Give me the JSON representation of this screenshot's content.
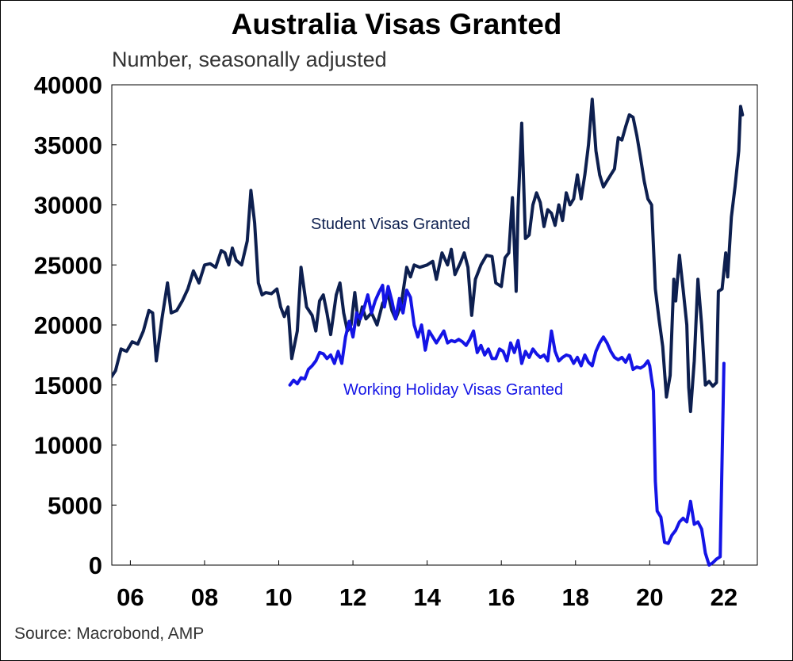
{
  "chart_data": {
    "type": "line",
    "title": "Australia Visas Granted",
    "subtitle": "Number, seasonally adjusted",
    "source": "Source: Macrobond, AMP",
    "ylim": [
      0,
      40000
    ],
    "yticks": [
      0,
      5000,
      10000,
      15000,
      20000,
      25000,
      30000,
      35000,
      40000
    ],
    "xlim": [
      2005.5,
      2022.9
    ],
    "xticks": [
      {
        "value": 2006,
        "label": "06"
      },
      {
        "value": 2008,
        "label": "08"
      },
      {
        "value": 2010,
        "label": "10"
      },
      {
        "value": 2012,
        "label": "12"
      },
      {
        "value": 2014,
        "label": "14"
      },
      {
        "value": 2016,
        "label": "16"
      },
      {
        "value": 2018,
        "label": "18"
      },
      {
        "value": 2020,
        "label": "20"
      },
      {
        "value": 2022,
        "label": "22"
      }
    ],
    "grid": false,
    "series": [
      {
        "name": "Student Visas Granted",
        "color": "#0d1f4f",
        "points": [
          [
            2005.6,
            16800
          ],
          [
            2005.75,
            15400
          ],
          [
            2005.9,
            16300
          ],
          [
            2006.0,
            15100
          ],
          [
            2006.15,
            16500
          ],
          [
            2006.3,
            16400
          ],
          [
            2006.45,
            15500
          ],
          [
            2006.6,
            16200
          ],
          [
            2006.75,
            18000
          ],
          [
            2006.9,
            17800
          ],
          [
            2007.05,
            18600
          ],
          [
            2007.2,
            18400
          ],
          [
            2007.35,
            19500
          ],
          [
            2007.5,
            21200
          ],
          [
            2007.6,
            21000
          ],
          [
            2007.7,
            17000
          ],
          [
            2007.85,
            20500
          ],
          [
            2008.0,
            23500
          ],
          [
            2008.1,
            21000
          ],
          [
            2008.25,
            21200
          ],
          [
            2008.4,
            22000
          ],
          [
            2008.55,
            23000
          ],
          [
            2008.7,
            24500
          ],
          [
            2008.85,
            23500
          ],
          [
            2009.0,
            25000
          ],
          [
            2009.15,
            25100
          ],
          [
            2009.3,
            24800
          ],
          [
            2009.45,
            26200
          ],
          [
            2009.55,
            26000
          ],
          [
            2009.65,
            25000
          ],
          [
            2009.75,
            26400
          ],
          [
            2009.85,
            25400
          ],
          [
            2010.0,
            25000
          ],
          [
            2010.15,
            27000
          ],
          [
            2010.25,
            31200
          ],
          [
            2010.35,
            28500
          ],
          [
            2010.45,
            23500
          ],
          [
            2010.55,
            22500
          ],
          [
            2010.65,
            22700
          ],
          [
            2010.8,
            22600
          ],
          [
            2010.95,
            23000
          ],
          [
            2011.05,
            21500
          ],
          [
            2011.15,
            20700
          ],
          [
            2011.25,
            21500
          ],
          [
            2011.35,
            17200
          ],
          [
            2011.5,
            19500
          ],
          [
            2011.6,
            24800
          ],
          [
            2011.75,
            21500
          ],
          [
            2011.9,
            20800
          ],
          [
            2012.0,
            19500
          ],
          [
            2012.1,
            22000
          ],
          [
            2012.2,
            22500
          ],
          [
            2012.3,
            21000
          ],
          [
            2012.4,
            19200
          ],
          [
            2012.55,
            22500
          ],
          [
            2012.65,
            23500
          ],
          [
            2012.75,
            21000
          ],
          [
            2012.85,
            19500
          ],
          [
            2012.95,
            20000
          ],
          [
            2013.05,
            22700
          ],
          [
            2013.15,
            20000
          ],
          [
            2013.25,
            21500
          ],
          [
            2013.35,
            20500
          ],
          [
            2013.5,
            21000
          ],
          [
            2013.65,
            20000
          ],
          [
            2013.8,
            21800
          ],
          [
            2013.95,
            22500
          ],
          [
            2014.05,
            21200
          ],
          [
            2014.15,
            20500
          ],
          [
            2014.3,
            21700
          ],
          [
            2014.45,
            24800
          ],
          [
            2014.55,
            24000
          ],
          [
            2014.65,
            25000
          ],
          [
            2014.8,
            24800
          ],
          [
            2015.0,
            25000
          ],
          [
            2015.15,
            25300
          ],
          [
            2015.25,
            23800
          ],
          [
            2015.4,
            26000
          ],
          [
            2015.55,
            25000
          ],
          [
            2015.65,
            26300
          ],
          [
            2015.75,
            24200
          ],
          [
            2015.9,
            25200
          ],
          [
            2016.0,
            26000
          ],
          [
            2016.1,
            24800
          ],
          [
            2016.2,
            20800
          ],
          [
            2016.3,
            23800
          ],
          [
            2016.45,
            25000
          ],
          [
            2016.6,
            25800
          ],
          [
            2016.75,
            25700
          ],
          [
            2016.85,
            23500
          ],
          [
            2017.0,
            23200
          ],
          [
            2017.1,
            25600
          ],
          [
            2017.2,
            26000
          ],
          [
            2017.3,
            30600
          ],
          [
            2017.4,
            22800
          ],
          [
            2017.45,
            29800
          ],
          [
            2017.55,
            36800
          ],
          [
            2017.65,
            27200
          ],
          [
            2017.75,
            27500
          ],
          [
            2017.85,
            30000
          ],
          [
            2017.95,
            31000
          ],
          [
            2018.05,
            30200
          ],
          [
            2018.15,
            28200
          ],
          [
            2018.25,
            29600
          ],
          [
            2018.35,
            29300
          ],
          [
            2018.45,
            28300
          ],
          [
            2018.55,
            30000
          ],
          [
            2018.65,
            28700
          ],
          [
            2018.75,
            31000
          ],
          [
            2018.85,
            30000
          ],
          [
            2018.95,
            30500
          ],
          [
            2019.05,
            32500
          ],
          [
            2019.15,
            30500
          ],
          [
            2019.25,
            32500
          ],
          [
            2019.35,
            35000
          ],
          [
            2019.45,
            38800
          ],
          [
            2019.55,
            34500
          ],
          [
            2019.65,
            32500
          ],
          [
            2019.75,
            31500
          ],
          [
            2019.85,
            32000
          ],
          [
            2019.95,
            32500
          ],
          [
            2020.05,
            33000
          ],
          [
            2020.15,
            35600
          ],
          [
            2020.25,
            35400
          ],
          [
            2020.35,
            36500
          ],
          [
            2020.45,
            37500
          ],
          [
            2020.55,
            37300
          ],
          [
            2020.65,
            35800
          ],
          [
            2020.75,
            34000
          ],
          [
            2020.85,
            32000
          ],
          [
            2020.95,
            30500
          ],
          [
            2021.05,
            30000
          ],
          [
            2021.15,
            23000
          ],
          [
            2021.25,
            20500
          ],
          [
            2021.35,
            18200
          ],
          [
            2021.45,
            14000
          ],
          [
            2021.55,
            15800
          ],
          [
            2021.65,
            23800
          ],
          [
            2021.7,
            22000
          ],
          [
            2021.8,
            25800
          ],
          [
            2021.9,
            23000
          ],
          [
            2022.0,
            20000
          ],
          [
            2022.05,
            14800
          ],
          [
            2022.1,
            12800
          ],
          [
            2022.2,
            17000
          ],
          [
            2022.3,
            23800
          ],
          [
            2022.4,
            20000
          ],
          [
            2022.5,
            15000
          ],
          [
            2022.6,
            15300
          ],
          [
            2022.7,
            14900
          ],
          [
            2022.8,
            15200
          ],
          [
            2022.85,
            22800
          ],
          [
            2022.95,
            23000
          ],
          [
            2023.05,
            26000
          ],
          [
            2023.1,
            24000
          ],
          [
            2023.2,
            29000
          ],
          [
            2023.3,
            31500
          ],
          [
            2023.4,
            34500
          ],
          [
            2023.45,
            38200
          ],
          [
            2023.5,
            37500
          ]
        ]
      },
      {
        "name": "Working Holiday Visas Granted",
        "color": "#1414e6",
        "points": [
          [
            2011.3,
            15000
          ],
          [
            2011.4,
            15400
          ],
          [
            2011.5,
            15100
          ],
          [
            2011.6,
            15600
          ],
          [
            2011.7,
            15500
          ],
          [
            2011.8,
            16300
          ],
          [
            2011.9,
            16600
          ],
          [
            2012.0,
            17000
          ],
          [
            2012.1,
            17700
          ],
          [
            2012.2,
            17600
          ],
          [
            2012.3,
            17200
          ],
          [
            2012.4,
            17500
          ],
          [
            2012.5,
            16800
          ],
          [
            2012.6,
            17800
          ],
          [
            2012.7,
            16800
          ],
          [
            2012.8,
            19000
          ],
          [
            2012.9,
            20300
          ],
          [
            2013.0,
            19000
          ],
          [
            2013.1,
            21000
          ],
          [
            2013.2,
            20500
          ],
          [
            2013.3,
            21400
          ],
          [
            2013.4,
            22500
          ],
          [
            2013.5,
            21000
          ],
          [
            2013.6,
            22000
          ],
          [
            2013.7,
            22700
          ],
          [
            2013.8,
            23300
          ],
          [
            2013.85,
            21500
          ],
          [
            2013.95,
            23200
          ],
          [
            2014.05,
            22000
          ],
          [
            2014.15,
            20500
          ],
          [
            2014.25,
            22200
          ],
          [
            2014.35,
            21000
          ],
          [
            2014.45,
            22900
          ],
          [
            2014.55,
            22300
          ],
          [
            2014.65,
            20000
          ],
          [
            2014.75,
            19000
          ],
          [
            2014.85,
            20000
          ],
          [
            2014.95,
            17900
          ],
          [
            2015.05,
            19500
          ],
          [
            2015.15,
            19000
          ],
          [
            2015.25,
            18500
          ],
          [
            2015.35,
            19000
          ],
          [
            2015.45,
            19500
          ],
          [
            2015.55,
            18500
          ],
          [
            2015.65,
            18700
          ],
          [
            2015.75,
            18600
          ],
          [
            2015.85,
            18800
          ],
          [
            2015.95,
            18600
          ],
          [
            2016.05,
            18300
          ],
          [
            2016.15,
            18800
          ],
          [
            2016.25,
            19500
          ],
          [
            2016.35,
            17700
          ],
          [
            2016.45,
            18300
          ],
          [
            2016.55,
            17500
          ],
          [
            2016.65,
            18000
          ],
          [
            2016.75,
            17200
          ],
          [
            2016.85,
            17200
          ],
          [
            2016.95,
            18000
          ],
          [
            2017.05,
            17800
          ],
          [
            2017.15,
            17000
          ],
          [
            2017.25,
            18500
          ],
          [
            2017.35,
            17700
          ],
          [
            2017.45,
            18700
          ],
          [
            2017.55,
            16800
          ],
          [
            2017.65,
            17800
          ],
          [
            2017.75,
            17300
          ],
          [
            2017.85,
            18000
          ],
          [
            2017.95,
            17600
          ],
          [
            2018.05,
            17300
          ],
          [
            2018.15,
            17500
          ],
          [
            2018.25,
            17000
          ],
          [
            2018.35,
            19500
          ],
          [
            2018.45,
            17800
          ],
          [
            2018.55,
            17000
          ],
          [
            2018.65,
            17300
          ],
          [
            2018.75,
            17500
          ],
          [
            2018.85,
            17400
          ],
          [
            2018.95,
            16800
          ],
          [
            2019.05,
            17300
          ],
          [
            2019.15,
            16600
          ],
          [
            2019.25,
            17500
          ],
          [
            2019.35,
            16900
          ],
          [
            2019.45,
            16600
          ],
          [
            2019.55,
            17800
          ],
          [
            2019.65,
            18500
          ],
          [
            2019.75,
            19000
          ],
          [
            2019.85,
            18500
          ],
          [
            2019.95,
            17800
          ],
          [
            2020.05,
            17300
          ],
          [
            2020.15,
            17100
          ],
          [
            2020.25,
            17300
          ],
          [
            2020.35,
            16900
          ],
          [
            2020.45,
            17500
          ],
          [
            2020.55,
            16300
          ],
          [
            2020.65,
            16500
          ],
          [
            2020.75,
            16400
          ],
          [
            2020.85,
            16600
          ],
          [
            2020.95,
            17000
          ],
          [
            2021.0,
            16600
          ],
          [
            2021.05,
            15500
          ],
          [
            2021.1,
            14500
          ],
          [
            2021.15,
            7000
          ],
          [
            2021.2,
            4500
          ],
          [
            2021.3,
            4000
          ],
          [
            2021.4,
            1900
          ],
          [
            2021.5,
            1800
          ],
          [
            2021.6,
            2500
          ],
          [
            2021.7,
            2900
          ],
          [
            2021.8,
            3600
          ],
          [
            2021.9,
            3900
          ],
          [
            2022.0,
            3600
          ],
          [
            2022.1,
            5300
          ],
          [
            2022.2,
            3400
          ],
          [
            2022.3,
            3600
          ],
          [
            2022.4,
            3000
          ],
          [
            2022.5,
            1000
          ],
          [
            2022.6,
            0
          ],
          [
            2022.7,
            200
          ],
          [
            2022.8,
            500
          ],
          [
            2022.9,
            700
          ],
          [
            2023.0,
            16800
          ]
        ]
      }
    ]
  }
}
